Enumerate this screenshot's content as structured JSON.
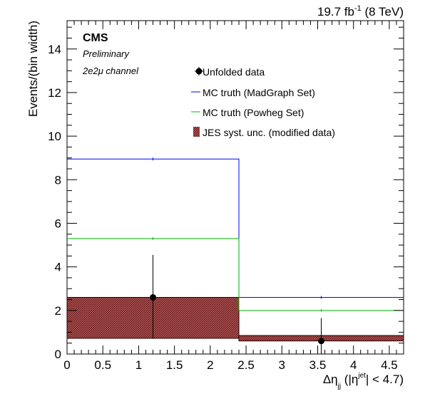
{
  "chart_data": {
    "type": "histogram",
    "lumi_label": "19.7 fb",
    "lumi_exponent": "-1",
    "lumi_energy": "(8 TeV)",
    "experiment": "CMS",
    "status": "Preliminary",
    "channel": "2e2μ channel",
    "ylabel": "Events/(bin width)",
    "xlabel_parts": {
      "prefix": "Δη",
      "sub": "jj",
      "open": " (|η",
      "sup": "jet",
      "close": "| < 4.7)"
    },
    "xlim": [
      0,
      4.7
    ],
    "ylim": [
      0,
      15.3
    ],
    "x_ticks": [
      0,
      0.5,
      1,
      1.5,
      2,
      2.5,
      3,
      3.5,
      4,
      4.5
    ],
    "x_tick_labels": [
      "0",
      "0.5",
      "1",
      "1.5",
      "2",
      "2.5",
      "3",
      "3.5",
      "4",
      "4.5"
    ],
    "y_ticks": [
      0,
      2,
      4,
      6,
      8,
      10,
      12,
      14
    ],
    "y_tick_labels": [
      "0",
      "2",
      "4",
      "6",
      "8",
      "10",
      "12",
      "14"
    ],
    "bin_edges": [
      0,
      2.4,
      4.7
    ],
    "series": [
      {
        "name": "Unfolded data",
        "kind": "points",
        "color": "#000000",
        "x": [
          1.2,
          3.55
        ],
        "y": [
          2.6,
          0.6
        ],
        "yerr_low": [
          1.9,
          0.6
        ],
        "yerr_high": [
          1.95,
          1.05
        ]
      },
      {
        "name": "MC truth (MadGraph Set)",
        "kind": "step",
        "color": "#0000ff",
        "values": [
          8.95,
          2.6
        ]
      },
      {
        "name": "MC truth (Powheg Set)",
        "kind": "step",
        "color": "#00bb00",
        "values": [
          5.3,
          2.0
        ]
      },
      {
        "name": "JES syst. unc. (modified data)",
        "kind": "band",
        "color": "#8b1a1a",
        "low": [
          0.72,
          0.6
        ],
        "high": [
          2.6,
          0.85
        ]
      }
    ],
    "legend_position": "top-right"
  }
}
